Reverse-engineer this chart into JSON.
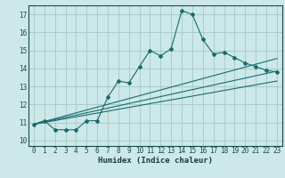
{
  "xlabel": "Humidex (Indice chaleur)",
  "bg_color": "#cce8e8",
  "grid_color": "#aacccc",
  "line_color": "#1a6b6b",
  "xlim": [
    -0.5,
    23.5
  ],
  "ylim": [
    9.7,
    17.5
  ],
  "xticks": [
    0,
    1,
    2,
    3,
    4,
    5,
    6,
    7,
    8,
    9,
    10,
    11,
    12,
    13,
    14,
    15,
    16,
    17,
    18,
    19,
    20,
    21,
    22,
    23
  ],
  "yticks": [
    10,
    11,
    12,
    13,
    14,
    15,
    16,
    17
  ],
  "line1_x": [
    0,
    1,
    2,
    3,
    4,
    5,
    6,
    7,
    8,
    9,
    10,
    11,
    12,
    13,
    14,
    15,
    16,
    17,
    18,
    19,
    20,
    21,
    22,
    23
  ],
  "line1_y": [
    10.9,
    11.1,
    10.6,
    10.6,
    10.6,
    11.1,
    11.1,
    12.4,
    13.3,
    13.2,
    14.1,
    15.0,
    14.7,
    15.1,
    17.2,
    17.0,
    15.6,
    14.8,
    14.9,
    14.6,
    14.3,
    14.1,
    13.9,
    13.8
  ],
  "line2_x": [
    0,
    23
  ],
  "line2_y": [
    10.9,
    14.55
  ],
  "line3_x": [
    0,
    23
  ],
  "line3_y": [
    10.9,
    13.85
  ],
  "line4_x": [
    0,
    23
  ],
  "line4_y": [
    10.9,
    13.3
  ]
}
